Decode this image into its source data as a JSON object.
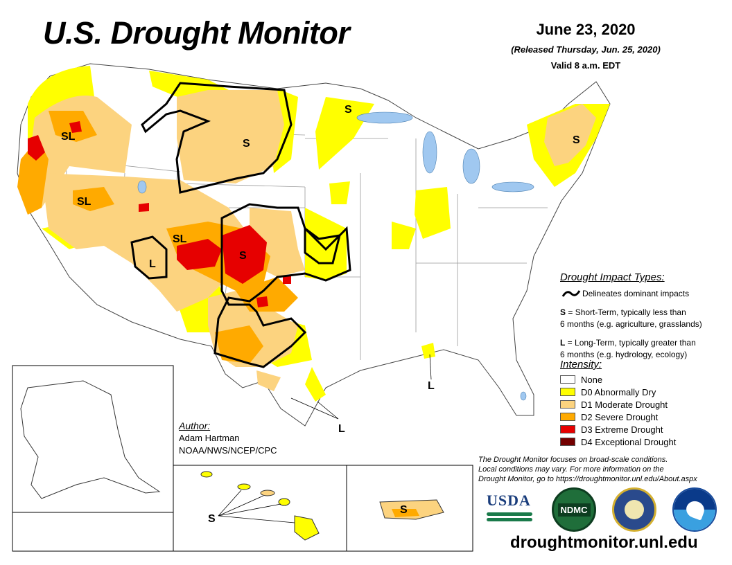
{
  "header": {
    "title": "U.S. Drought Monitor",
    "date": "June 23, 2020",
    "released": "(Released Thursday, Jun. 25, 2020)",
    "valid": "Valid 8 a.m. EDT"
  },
  "map_labels": {
    "sl_oregon": "SL",
    "s_montana": "S",
    "s_minnesota": "S",
    "s_maine": "S",
    "sl_nevada": "SL",
    "sl_colorado": "SL",
    "l_arizona": "L",
    "s_colorado": "S",
    "l_louisiana": "L",
    "l_texas": "L",
    "s_hawaii": "S",
    "s_puerto_rico": "S"
  },
  "impacts": {
    "heading": "Drought Impact Types:",
    "delineates": "Delineates dominant impacts",
    "short_key": "S",
    "short_desc_1": " = Short-Term, typically less than",
    "short_desc_2": "6 months (e.g. agriculture, grasslands)",
    "long_key": "L",
    "long_desc_1": " = Long-Term, typically greater than",
    "long_desc_2": "6 months (e.g. hydrology, ecology)"
  },
  "intensity": {
    "heading": "Intensity:",
    "categories": [
      {
        "label": "None",
        "color": "#ffffff"
      },
      {
        "label": "D0 Abnormally Dry",
        "color": "#ffff00"
      },
      {
        "label": "D1 Moderate Drought",
        "color": "#fcd37f"
      },
      {
        "label": "D2 Severe Drought",
        "color": "#ffaa00"
      },
      {
        "label": "D3 Extreme Drought",
        "color": "#e60000"
      },
      {
        "label": "D4 Exceptional Drought",
        "color": "#730000"
      }
    ]
  },
  "author": {
    "heading": "Author:",
    "name": "Adam Hartman",
    "org": "NOAA/NWS/NCEP/CPC"
  },
  "note": {
    "line1": "The Drought Monitor focuses on broad-scale conditions.",
    "line2": "Local conditions may vary. For more information on the",
    "line3": "Drought Monitor, go to https://droughtmonitor.unl.edu/About.aspx"
  },
  "logos": {
    "usda": "USDA",
    "ndmc": "NDMC"
  },
  "url": "droughtmonitor.unl.edu"
}
